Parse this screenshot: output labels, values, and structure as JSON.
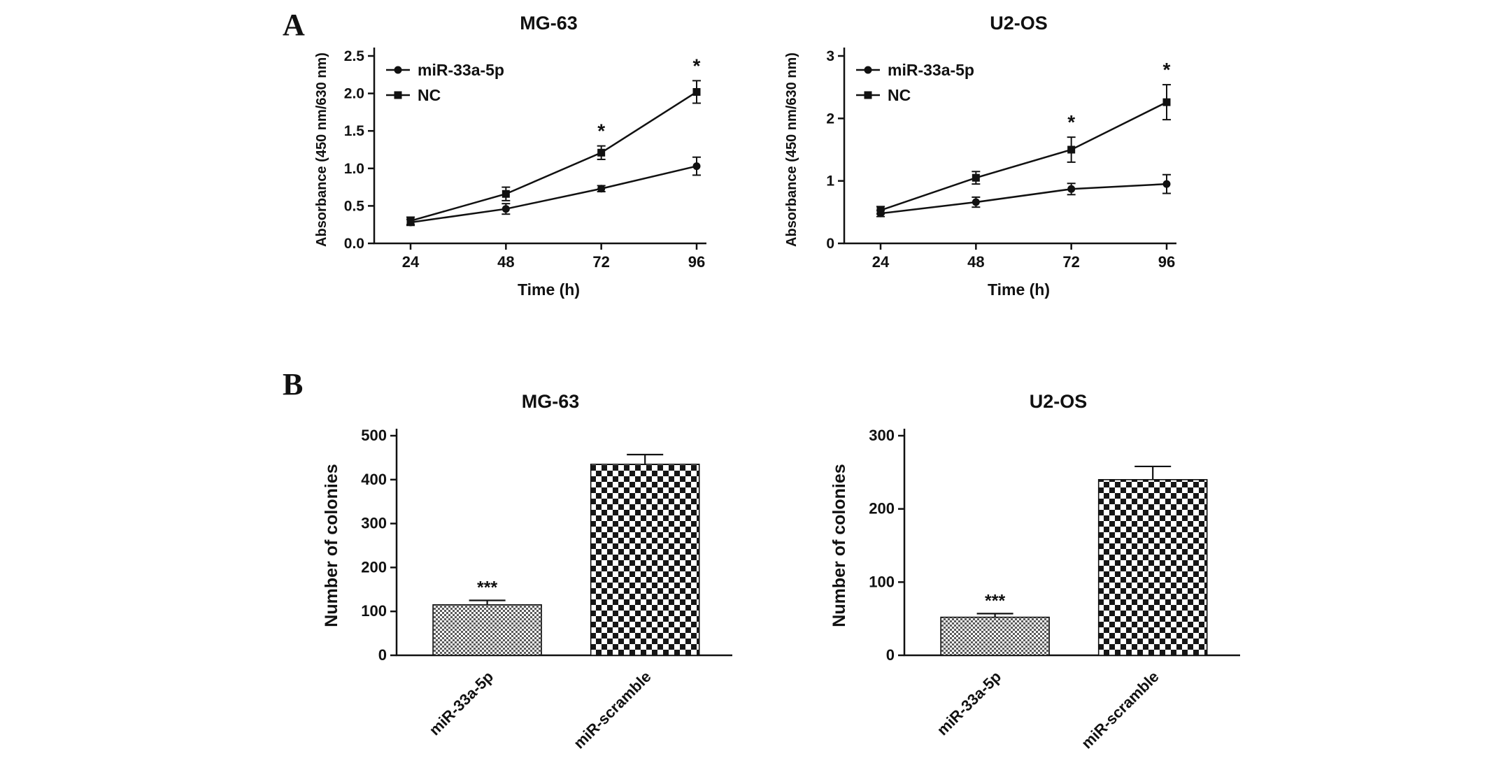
{
  "figure": {
    "background": "#ffffff",
    "ink_color": "#111111",
    "panels": [
      {
        "label": "A"
      },
      {
        "label": "B"
      }
    ]
  },
  "chart_data": [
    {
      "id": "mg63-proliferation",
      "panel": "A",
      "type": "line",
      "title": "MG-63",
      "xlabel": "Time (h)",
      "ylabel": "Absorbance (450 nm/630 nm)",
      "x": [
        24,
        48,
        72,
        96
      ],
      "ylim": [
        0,
        2.5
      ],
      "yticks": [
        0.0,
        0.5,
        1.0,
        1.5,
        2.0,
        2.5
      ],
      "ytick_decimals": 1,
      "grid": false,
      "legend_position": "top-left",
      "series": [
        {
          "name": "miR-33a-5p",
          "marker": "circle",
          "values": [
            0.28,
            0.46,
            0.73,
            1.03
          ],
          "errors": [
            0.04,
            0.07,
            0.04,
            0.12
          ]
        },
        {
          "name": "NC",
          "marker": "square",
          "values": [
            0.3,
            0.66,
            1.21,
            2.02
          ],
          "errors": [
            0.05,
            0.09,
            0.09,
            0.15
          ]
        }
      ],
      "annotations": [
        {
          "x": 72,
          "series": "NC",
          "text": "*"
        },
        {
          "x": 96,
          "series": "NC",
          "text": "*"
        }
      ]
    },
    {
      "id": "u2os-proliferation",
      "panel": "A",
      "type": "line",
      "title": "U2-OS",
      "xlabel": "Time (h)",
      "ylabel": "Absorbance (450 nm/630 nm)",
      "x": [
        24,
        48,
        72,
        96
      ],
      "ylim": [
        0,
        3
      ],
      "yticks": [
        0,
        1,
        2,
        3
      ],
      "ytick_decimals": 0,
      "grid": false,
      "legend_position": "top-left",
      "series": [
        {
          "name": "miR-33a-5p",
          "marker": "circle",
          "values": [
            0.48,
            0.66,
            0.87,
            0.95
          ],
          "errors": [
            0.05,
            0.08,
            0.09,
            0.15
          ]
        },
        {
          "name": "NC",
          "marker": "square",
          "values": [
            0.53,
            1.05,
            1.5,
            2.26
          ],
          "errors": [
            0.06,
            0.1,
            0.2,
            0.28
          ]
        }
      ],
      "annotations": [
        {
          "x": 72,
          "series": "NC",
          "text": "*"
        },
        {
          "x": 96,
          "series": "NC",
          "text": "*"
        }
      ]
    },
    {
      "id": "mg63-colonies",
      "panel": "B",
      "type": "bar",
      "title": "MG-63",
      "xlabel": "",
      "ylabel": "Number of colonies",
      "categories": [
        "miR-33a-5p",
        "miR-scramble"
      ],
      "values": [
        115,
        435
      ],
      "errors": [
        10,
        22
      ],
      "ylim": [
        0,
        500
      ],
      "yticks": [
        0,
        100,
        200,
        300,
        400,
        500
      ],
      "grid": false,
      "patterns": [
        "fine-check",
        "coarse-check"
      ],
      "annotations": [
        {
          "category": "miR-33a-5p",
          "text": "***"
        }
      ]
    },
    {
      "id": "u2os-colonies",
      "panel": "B",
      "type": "bar",
      "title": "U2-OS",
      "xlabel": "",
      "ylabel": "Number of colonies",
      "categories": [
        "miR-33a-5p",
        "miR-scramble"
      ],
      "values": [
        52,
        240
      ],
      "errors": [
        5,
        18
      ],
      "ylim": [
        0,
        300
      ],
      "yticks": [
        0,
        100,
        200,
        300
      ],
      "grid": false,
      "patterns": [
        "fine-check",
        "coarse-check"
      ],
      "annotations": [
        {
          "category": "miR-33a-5p",
          "text": "***"
        }
      ]
    }
  ]
}
